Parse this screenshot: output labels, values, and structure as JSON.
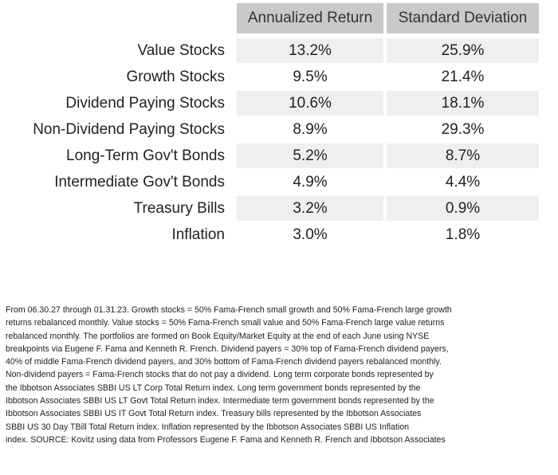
{
  "chart_data": {
    "type": "table",
    "columns": [
      "Annualized Return",
      "Standard Deviation"
    ],
    "rows": [
      {
        "label": "Value Stocks",
        "values": [
          "13.2%",
          "25.9%"
        ]
      },
      {
        "label": "Growth Stocks",
        "values": [
          "9.5%",
          "21.4%"
        ]
      },
      {
        "label": "Dividend Paying Stocks",
        "values": [
          "10.6%",
          "18.1%"
        ]
      },
      {
        "label": "Non-Dividend Paying Stocks",
        "values": [
          "8.9%",
          "29.3%"
        ]
      },
      {
        "label": "Long-Term Gov't Bonds",
        "values": [
          "5.2%",
          "8.7%"
        ]
      },
      {
        "label": "Intermediate Gov't Bonds",
        "values": [
          "4.9%",
          "4.4%"
        ]
      },
      {
        "label": "Treasury Bills",
        "values": [
          "3.2%",
          "0.9%"
        ]
      },
      {
        "label": "Inflation",
        "values": [
          "3.0%",
          "1.8%"
        ]
      }
    ]
  },
  "footnote": [
    "From 06.30.27 through 01.31.23. Growth stocks = 50% Fama-French small growth and 50% Fama-French large growth",
    "returns rebalanced monthly. Value stocks = 50% Fama-French small value and 50% Fama-French large value returns",
    "rebalanced monthly. The portfolios are formed on Book Equity/Market Equity at the end of each June using NYSE",
    "breakpoints via Eugene F. Fama and Kenneth R. French. Dividend payers = 30% top of Fama-French dividend payers,",
    "40% of middle Fama-French dividend payers, and 30% bottom of Fama-French dividend payers rebalanced monthly.",
    "Non-dividend payers = Fama-French stocks that do not pay a dividend. Long term corporate bonds represented by",
    "the Ibbotson Associates SBBI US LT Corp Total Return index. Long term government bonds represented by the",
    "Ibbotson Associates SBBI US LT Govt Total Return index.  Intermediate term government bonds represented by the",
    "Ibbotson Associates SBBI US IT Govt Total Return index. Treasury bills represented by the Ibbotson Associates",
    "SBBI US 30 Day TBill Total Return index. Inflation represented by the Ibbotson Associates SBBI US Inflation",
    "index. SOURCE: Kovitz using data from Professors Eugene F. Fama and Kenneth R. French and Ibbotson Associates"
  ]
}
